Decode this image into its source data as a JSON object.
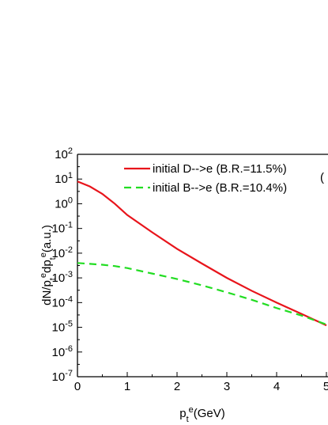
{
  "chart_data": {
    "type": "line",
    "x_label": "p_{t}^{e}(GeV)",
    "y_label": "dN/p_{t}^{e}dp_{t}^{e}(a.u.)",
    "annotations": [
      "("
    ],
    "log_y": true,
    "xlim": [
      0,
      5
    ],
    "xticks": [
      0,
      1,
      2,
      3,
      4,
      5
    ],
    "ylim": [
      1e-07,
      100
    ],
    "yticks": [
      {
        "value": 100,
        "label": "10^{2}"
      },
      {
        "value": 10,
        "label": "10^{1}"
      },
      {
        "value": 1,
        "label": "10^{0}"
      },
      {
        "value": 0.1,
        "label": "10^{-1}"
      },
      {
        "value": 0.01,
        "label": "10^{-2}"
      },
      {
        "value": 0.001,
        "label": "10^{-3}"
      },
      {
        "value": 0.0001,
        "label": "10^{-4}"
      },
      {
        "value": 1e-05,
        "label": "10^{-5}"
      },
      {
        "value": 1e-06,
        "label": "10^{-6}"
      },
      {
        "value": 1e-07,
        "label": "10^{-7}"
      }
    ],
    "x": [
      0,
      0.25,
      0.5,
      0.75,
      1,
      1.5,
      2,
      2.5,
      3,
      3.5,
      4,
      4.5,
      5
    ],
    "series": [
      {
        "name": "initial D-->e (B.R.=11.5%)",
        "color": "#e8141b",
        "dash": false,
        "values": [
          8,
          5,
          2.5,
          1,
          0.35,
          0.07,
          0.015,
          0.0038,
          0.001,
          0.0003,
          0.0001,
          3.5e-05,
          1.2e-05
        ]
      },
      {
        "name": "initial B-->e (B.R.=10.4%)",
        "color": "#22dd22",
        "dash": true,
        "values": [
          0.004,
          0.0037,
          0.0034,
          0.003,
          0.0025,
          0.0015,
          0.0009,
          0.0005,
          0.00026,
          0.00013,
          6e-05,
          3e-05,
          1.3e-05
        ]
      }
    ]
  }
}
